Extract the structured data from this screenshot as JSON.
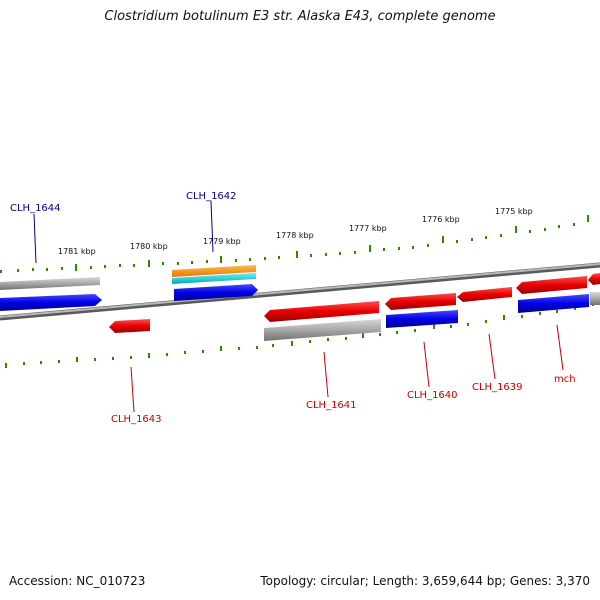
{
  "title": "Clostridium botulinum E3 str. Alaska E43, complete genome",
  "footer": {
    "accession": "Accession: NC_010723",
    "summary": "Topology: circular; Length: 3,659,644 bp; Genes: 3,370"
  },
  "scale_labels": [
    "1781 kbp",
    "1780 kbp",
    "1779 kbp",
    "1778 kbp",
    "1777 kbp",
    "1776 kbp",
    "1775 kbp"
  ],
  "gene_labels": {
    "CLH_1644": "CLH_1644",
    "CLH_1642": "CLH_1642",
    "CLH_1643": "CLH_1643",
    "CLH_1641": "CLH_1641",
    "CLH_1640": "CLH_1640",
    "CLH_1639": "CLH_1639",
    "mch": "mch"
  },
  "colors": {
    "backbone": "#8a8a8a",
    "forward_gene": "#0000e6",
    "reverse_gene": "#e60000",
    "rna_gene": "#f08c00",
    "rna_secondary": "#00c8d2",
    "pseudo": "#a8a8a8",
    "scale_tick": "#2e8b00",
    "label_forward": "#00008b",
    "label_reverse": "#c80000"
  }
}
